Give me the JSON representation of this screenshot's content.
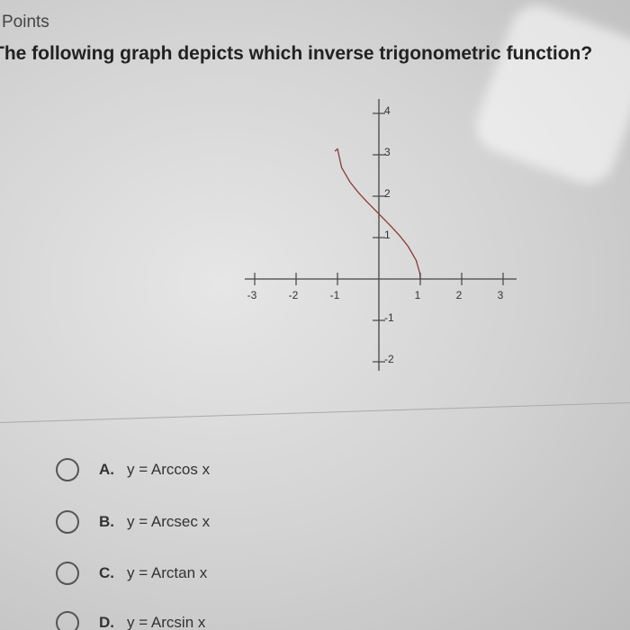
{
  "header": {
    "points": "Points"
  },
  "question": "The following graph depicts which inverse trigonometric function?",
  "graph": {
    "xticks": [
      -3,
      -2,
      -1,
      1,
      2,
      3
    ],
    "yticks": [
      -2,
      -1,
      1,
      2,
      3,
      4
    ]
  },
  "options": [
    {
      "letter": "A.",
      "text": "y = Arccos x"
    },
    {
      "letter": "B.",
      "text": "y = Arcsec x"
    },
    {
      "letter": "C.",
      "text": "y = Arctan x"
    },
    {
      "letter": "D.",
      "text": "y = Arcsin x"
    }
  ]
}
